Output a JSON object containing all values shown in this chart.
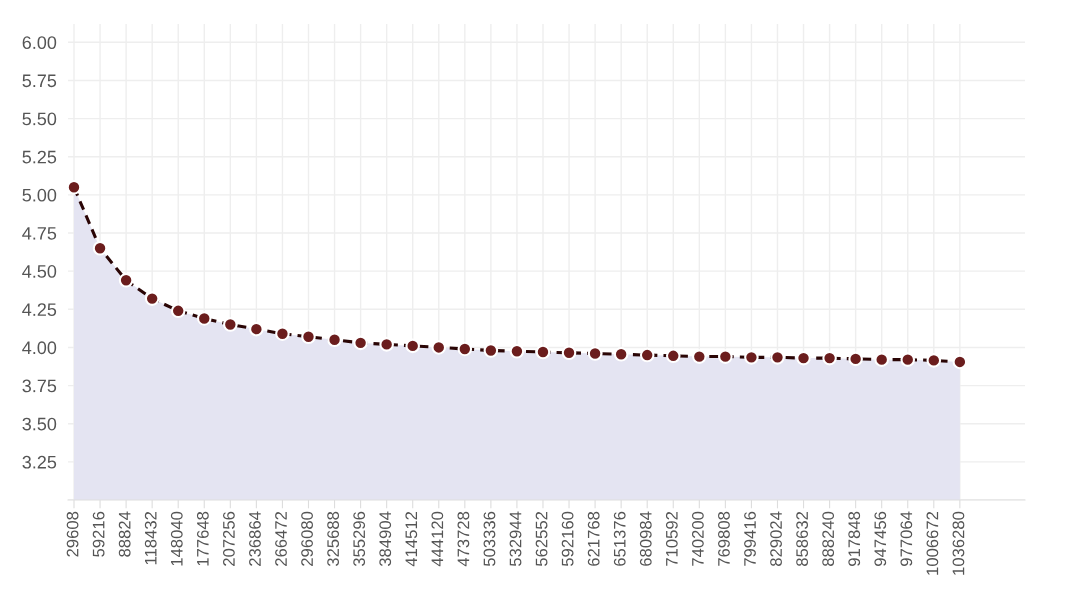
{
  "chart_data": {
    "type": "area",
    "categories": [
      "29608",
      "59216",
      "88824",
      "118432",
      "148040",
      "177648",
      "207256",
      "236864",
      "266472",
      "296080",
      "325688",
      "355296",
      "384904",
      "414512",
      "444120",
      "473728",
      "503336",
      "532944",
      "562552",
      "592160",
      "621768",
      "651376",
      "680984",
      "710592",
      "740200",
      "769808",
      "799416",
      "829024",
      "858632",
      "888240",
      "917848",
      "947456",
      "977064",
      "1006672",
      "1036280"
    ],
    "series": [
      {
        "color": "#6b1d1d",
        "values": [
          5.05,
          4.65,
          4.44,
          4.32,
          4.24,
          4.19,
          4.15,
          4.12,
          4.09,
          4.07,
          4.05,
          4.03,
          4.02,
          4.01,
          4.0,
          3.99,
          3.98,
          3.975,
          3.97,
          3.965,
          3.96,
          3.955,
          3.95,
          3.945,
          3.94,
          3.94,
          3.935,
          3.935,
          3.93,
          3.93,
          3.925,
          3.92,
          3.92,
          3.915,
          3.905
        ]
      }
    ],
    "ylim": [
      3.0,
      6.12
    ],
    "yticks": [
      {
        "value": 3.0,
        "label": null
      },
      {
        "value": 3.25,
        "label": "3.25"
      },
      {
        "value": 3.5,
        "label": "3.50"
      },
      {
        "value": 3.75,
        "label": "3.75"
      },
      {
        "value": 4.0,
        "label": "4.00"
      },
      {
        "value": 4.25,
        "label": "4.25"
      },
      {
        "value": 4.5,
        "label": "4.50"
      },
      {
        "value": 4.75,
        "label": "4.75"
      },
      {
        "value": 5.0,
        "label": "5.00"
      },
      {
        "value": 5.25,
        "label": "5.25"
      },
      {
        "value": 5.5,
        "label": "5.50"
      },
      {
        "value": 5.75,
        "label": "5.75"
      },
      {
        "value": 6.0,
        "label": "6.00"
      }
    ],
    "grid": true,
    "marker": "circle",
    "line_style": "dashed"
  }
}
